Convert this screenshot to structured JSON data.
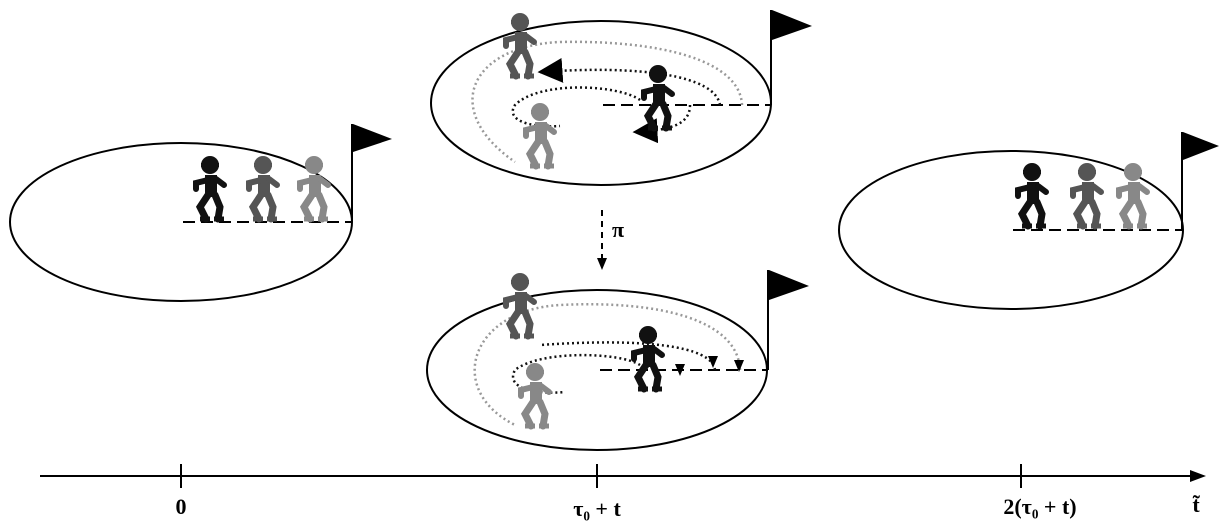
{
  "axis": {
    "label": "t̃",
    "ticks": [
      "0",
      "τ₀ + t",
      "2(τ₀ + t)"
    ]
  },
  "arrow_label": "π"
}
